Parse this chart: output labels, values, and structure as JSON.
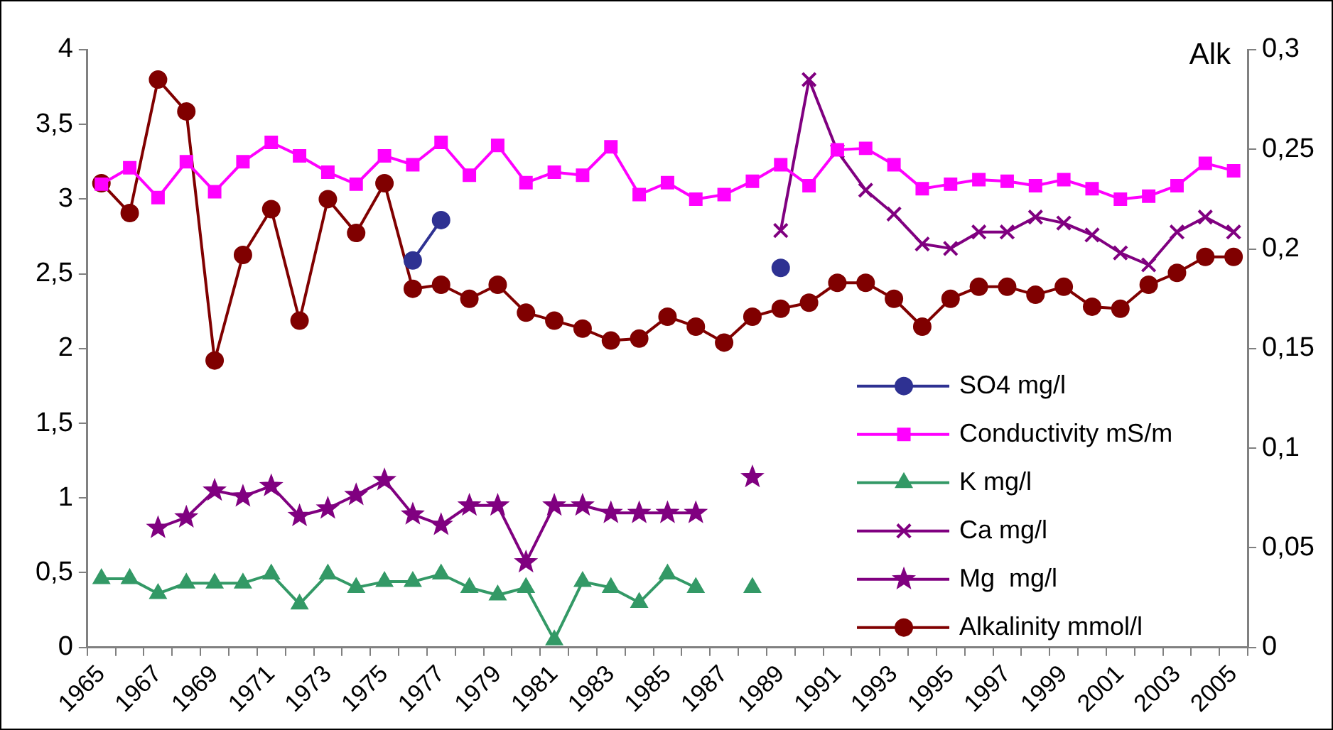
{
  "chart_data": {
    "type": "line",
    "y2label": "Alk",
    "categories": [
      "1965",
      null,
      "1967",
      null,
      "1969",
      null,
      "1971",
      null,
      "1973",
      null,
      "1975",
      null,
      "1977",
      null,
      "1979",
      null,
      "1981",
      null,
      "1983",
      null,
      "1985",
      null,
      "1987",
      null,
      "1989",
      null,
      "1991",
      null,
      "1993",
      null,
      "1995",
      null,
      "1997",
      null,
      "1999",
      null,
      "2001",
      null,
      "2003",
      null,
      "2005"
    ],
    "ylim": [
      0,
      4
    ],
    "yticks": [
      0,
      {
        "value": 0.5,
        "label": "0,5"
      },
      1,
      {
        "value": 1.5,
        "label": "1,5"
      },
      2,
      {
        "value": 2.5,
        "label": "2,5"
      },
      3,
      {
        "value": 3.5,
        "label": "3,5"
      },
      4
    ],
    "y2lim": [
      0,
      0.3
    ],
    "y2ticks": [
      0,
      {
        "value": 0.05,
        "label": "0,05"
      },
      {
        "value": 0.1,
        "label": "0,1"
      },
      {
        "value": 0.15,
        "label": "0,15"
      },
      {
        "value": 0.2,
        "label": "0,2"
      },
      {
        "value": 0.25,
        "label": "0,25"
      },
      {
        "value": 0.3,
        "label": "0,3"
      }
    ],
    "grid": false,
    "legend": "bottom right",
    "series": [
      {
        "name": "SO4 mg/l",
        "color": "#2e3192",
        "marker": "circle",
        "values": [
          null,
          null,
          null,
          null,
          null,
          null,
          null,
          null,
          null,
          null,
          null,
          2.59,
          2.86,
          null,
          null,
          null,
          null,
          null,
          null,
          null,
          null,
          null,
          null,
          null,
          2.54,
          null,
          null,
          null,
          null,
          null,
          null,
          null,
          null,
          null,
          null,
          null,
          null,
          null,
          null,
          null,
          null
        ]
      },
      {
        "name": "Conductivity mS/m",
        "color": "#ff00ff",
        "marker": "square",
        "values": [
          3.1,
          3.21,
          3.01,
          3.25,
          3.05,
          3.25,
          3.38,
          3.29,
          3.18,
          3.1,
          3.29,
          3.23,
          3.38,
          3.16,
          3.36,
          3.11,
          3.18,
          3.16,
          3.35,
          3.03,
          3.11,
          3.0,
          3.03,
          3.12,
          3.23,
          3.09,
          3.33,
          3.34,
          3.23,
          3.07,
          3.1,
          3.13,
          3.12,
          3.09,
          3.13,
          3.07,
          3.0,
          3.02,
          3.09,
          3.24,
          3.19
        ]
      },
      {
        "name": "K mg/l",
        "color": "#339966",
        "marker": "triangle",
        "values": [
          0.46,
          0.46,
          0.36,
          0.43,
          0.43,
          0.43,
          0.49,
          0.29,
          0.49,
          0.4,
          0.44,
          0.44,
          0.49,
          0.4,
          0.35,
          0.4,
          0.05,
          0.44,
          0.4,
          0.3,
          0.49,
          0.4,
          null,
          0.4,
          null,
          null,
          null,
          null,
          null,
          null,
          null,
          null,
          null,
          null,
          null,
          null,
          null,
          null,
          null,
          null,
          null
        ]
      },
      {
        "name": "Ca mg/l",
        "color": "#800080",
        "marker": "cross",
        "values": [
          null,
          null,
          null,
          null,
          null,
          null,
          null,
          null,
          null,
          null,
          null,
          null,
          null,
          null,
          null,
          null,
          null,
          null,
          null,
          null,
          null,
          null,
          null,
          null,
          2.79,
          3.8,
          3.32,
          3.06,
          2.9,
          2.7,
          2.67,
          2.78,
          2.78,
          2.88,
          2.84,
          2.76,
          2.64,
          2.56,
          2.78,
          2.88,
          2.78
        ]
      },
      {
        "name": "Mg  mg/l",
        "color": "#800080",
        "marker": "star",
        "values": [
          null,
          null,
          0.8,
          0.87,
          1.05,
          1.01,
          1.08,
          0.88,
          0.93,
          1.02,
          1.12,
          0.89,
          0.82,
          0.95,
          0.95,
          0.57,
          0.95,
          0.95,
          0.9,
          0.9,
          0.9,
          0.9,
          null,
          1.14,
          null,
          null,
          null,
          null,
          null,
          null,
          null,
          null,
          null,
          null,
          null,
          null,
          null,
          null,
          null,
          null,
          null
        ]
      },
      {
        "name": "Alkalinity mmol/l",
        "color": "#800000",
        "marker": "circle",
        "axis": "y2",
        "values": [
          0.233,
          0.218,
          0.285,
          0.269,
          0.144,
          0.197,
          0.22,
          0.164,
          0.225,
          0.208,
          0.233,
          0.18,
          0.182,
          0.175,
          0.182,
          0.168,
          0.164,
          0.16,
          0.154,
          0.155,
          0.166,
          0.161,
          0.153,
          0.166,
          0.17,
          0.173,
          0.183,
          0.183,
          0.175,
          0.161,
          0.175,
          0.181,
          0.181,
          0.177,
          0.181,
          0.171,
          0.17,
          0.182,
          0.188,
          0.196,
          0.196
        ]
      }
    ]
  }
}
